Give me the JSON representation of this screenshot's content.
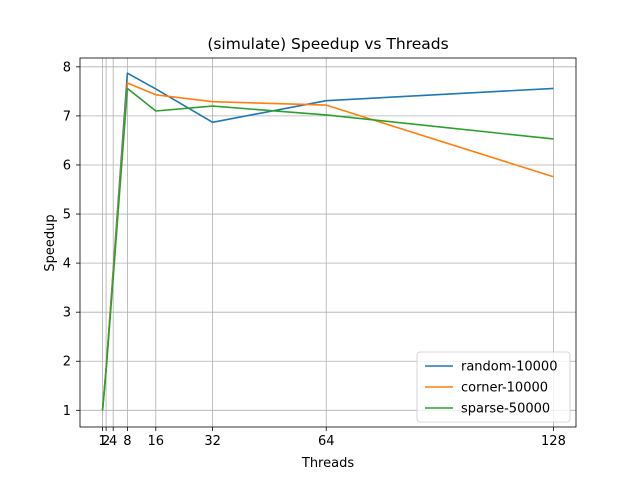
{
  "chart_data": {
    "type": "line",
    "title": "(simulate) Speedup vs Threads",
    "xlabel": "Threads",
    "ylabel": "Speedup",
    "x": [
      1,
      2,
      4,
      8,
      16,
      32,
      64,
      128
    ],
    "xticks": [
      "1",
      "2",
      "4",
      "8",
      "16",
      "32",
      "64",
      "128"
    ],
    "yticks": [
      "1",
      "2",
      "3",
      "4",
      "5",
      "6",
      "7",
      "8"
    ],
    "xlim": [
      -5.35,
      134.35
    ],
    "ylim": [
      0.66,
      8.18
    ],
    "grid": true,
    "legend_position": "lower-right",
    "series": [
      {
        "name": "random-10000",
        "color": "#1f77b4",
        "values": [
          1.0,
          1.85,
          3.85,
          7.87,
          7.55,
          6.87,
          7.31,
          7.56
        ]
      },
      {
        "name": "corner-10000",
        "color": "#ff7f0e",
        "values": [
          1.0,
          1.85,
          3.8,
          7.67,
          7.43,
          7.29,
          7.22,
          5.76
        ]
      },
      {
        "name": "sparse-50000",
        "color": "#2ca02c",
        "values": [
          1.0,
          1.8,
          3.7,
          7.56,
          7.1,
          7.2,
          7.02,
          6.53
        ]
      }
    ]
  }
}
